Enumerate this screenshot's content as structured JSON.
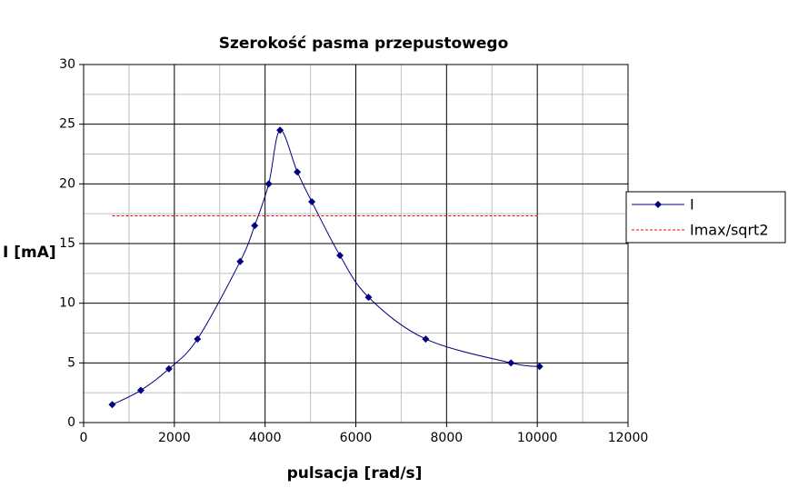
{
  "chart_data": {
    "type": "line",
    "title": "Szerokość pasma przepustowego",
    "x_label": "pulsacja [rad/s]",
    "y_label": "I [mA]",
    "series": [
      {
        "name": "I",
        "color": "#000080",
        "smooth": true,
        "marker": "diamond",
        "x": [
          630,
          1260,
          1880,
          2510,
          3450,
          3770,
          4080,
          4330,
          4710,
          5030,
          5650,
          6280,
          7540,
          9420,
          10050
        ],
        "values": [
          1.5,
          2.7,
          4.5,
          7,
          13.5,
          16.5,
          20,
          24.5,
          21,
          18.5,
          14,
          10.5,
          7,
          5,
          4.7
        ]
      },
      {
        "name": "Imax/sqrt2",
        "color": "#ff0000",
        "dashed": true,
        "x": [
          630,
          10050
        ],
        "values": [
          17.32,
          17.32
        ]
      }
    ],
    "xlim": [
      0,
      12000
    ],
    "xticks": [
      0,
      2000,
      4000,
      6000,
      8000,
      10000,
      12000
    ],
    "ylim": [
      0,
      30
    ],
    "yticks": [
      0,
      5,
      10,
      15,
      20,
      25,
      30
    ],
    "grid": true,
    "legend": "right"
  }
}
